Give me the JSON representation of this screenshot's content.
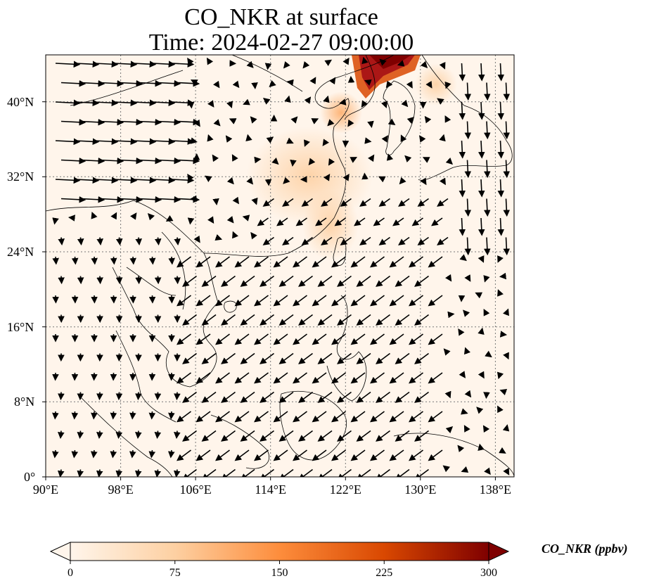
{
  "title_line1": "CO_NKR at surface",
  "title_line2": "Time: 2024-02-27 09:00:00",
  "x_ticks": [
    "90°E",
    "98°E",
    "106°E",
    "114°E",
    "122°E",
    "130°E",
    "138°E"
  ],
  "y_ticks": [
    "0°",
    "8°N",
    "16°N",
    "24°N",
    "32°N",
    "40°N"
  ],
  "colorbar": {
    "label": "CO_NKR (ppbv)",
    "ticks": [
      "0",
      "75",
      "150",
      "225",
      "300"
    ],
    "min": 0,
    "max": 300,
    "colors": [
      "#fff5eb",
      "#fdd0a2",
      "#fd8d3c",
      "#d94801",
      "#7f0000"
    ],
    "extend": "both"
  },
  "map": {
    "lon_range": [
      90,
      140
    ],
    "lat_range": [
      0,
      45
    ],
    "gridlines": true,
    "land_outline_color": "#000000",
    "background_color": "#fff5eb"
  }
}
